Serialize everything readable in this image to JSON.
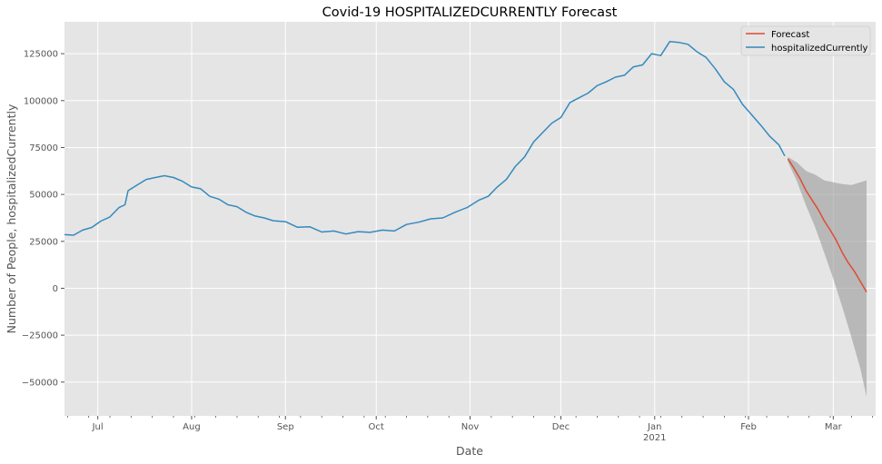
{
  "chart_data": {
    "type": "line",
    "title": "Covid-19 HOSPITALIZEDCURRENTLY Forecast",
    "xlabel": "Date",
    "ylabel": "Number of People, hospitalizedCurrently",
    "grid": true,
    "legend_position": "top-right",
    "xlim": [
      "2020-06-20",
      "2021-03-15"
    ],
    "ylim": [
      -68000,
      142000
    ],
    "x_ticks": [
      {
        "date": "2020-07-01",
        "label": "Jul"
      },
      {
        "date": "2020-08-01",
        "label": "Aug"
      },
      {
        "date": "2020-09-01",
        "label": "Sep"
      },
      {
        "date": "2020-10-01",
        "label": "Oct"
      },
      {
        "date": "2020-11-01",
        "label": "Nov"
      },
      {
        "date": "2020-12-01",
        "label": "Dec"
      },
      {
        "date": "2021-01-01",
        "label": "Jan",
        "sublabel": "2021"
      },
      {
        "date": "2021-02-01",
        "label": "Feb"
      },
      {
        "date": "2021-03-01",
        "label": "Mar"
      }
    ],
    "y_ticks": [
      -50000,
      -25000,
      0,
      25000,
      50000,
      75000,
      100000,
      125000
    ],
    "y_tick_labels": [
      "−50000",
      "−25000",
      "0",
      "25000",
      "50000",
      "75000",
      "100000",
      "125000"
    ],
    "series": [
      {
        "name": "hospitalizedCurrently",
        "color": "#348ABD",
        "points": [
          [
            "2020-06-20",
            28600
          ],
          [
            "2020-06-23",
            28300
          ],
          [
            "2020-06-26",
            31000
          ],
          [
            "2020-06-29",
            32400
          ],
          [
            "2020-07-02",
            35800
          ],
          [
            "2020-07-05",
            38000
          ],
          [
            "2020-07-08",
            43000
          ],
          [
            "2020-07-10",
            44500
          ],
          [
            "2020-07-11",
            52000
          ],
          [
            "2020-07-14",
            55000
          ],
          [
            "2020-07-17",
            58000
          ],
          [
            "2020-07-20",
            59000
          ],
          [
            "2020-07-23",
            60000
          ],
          [
            "2020-07-26",
            59000
          ],
          [
            "2020-07-29",
            57000
          ],
          [
            "2020-08-01",
            54000
          ],
          [
            "2020-08-04",
            53000
          ],
          [
            "2020-08-07",
            49000
          ],
          [
            "2020-08-10",
            47500
          ],
          [
            "2020-08-13",
            44500
          ],
          [
            "2020-08-16",
            43500
          ],
          [
            "2020-08-19",
            40500
          ],
          [
            "2020-08-22",
            38500
          ],
          [
            "2020-08-25",
            37500
          ],
          [
            "2020-08-28",
            36000
          ],
          [
            "2020-09-01",
            35500
          ],
          [
            "2020-09-05",
            32500
          ],
          [
            "2020-09-09",
            32800
          ],
          [
            "2020-09-13",
            30000
          ],
          [
            "2020-09-17",
            30500
          ],
          [
            "2020-09-21",
            28900
          ],
          [
            "2020-09-25",
            30200
          ],
          [
            "2020-09-29",
            29800
          ],
          [
            "2020-10-03",
            31000
          ],
          [
            "2020-10-07",
            30500
          ],
          [
            "2020-10-11",
            34000
          ],
          [
            "2020-10-15",
            35200
          ],
          [
            "2020-10-19",
            37000
          ],
          [
            "2020-10-23",
            37500
          ],
          [
            "2020-10-27",
            40500
          ],
          [
            "2020-10-31",
            43000
          ],
          [
            "2020-11-04",
            47000
          ],
          [
            "2020-11-07",
            49000
          ],
          [
            "2020-11-10",
            54000
          ],
          [
            "2020-11-13",
            58000
          ],
          [
            "2020-11-16",
            65000
          ],
          [
            "2020-11-19",
            70000
          ],
          [
            "2020-11-22",
            78000
          ],
          [
            "2020-11-25",
            83000
          ],
          [
            "2020-11-28",
            88000
          ],
          [
            "2020-12-01",
            91000
          ],
          [
            "2020-12-04",
            99000
          ],
          [
            "2020-12-07",
            101500
          ],
          [
            "2020-12-10",
            104000
          ],
          [
            "2020-12-13",
            108000
          ],
          [
            "2020-12-16",
            110000
          ],
          [
            "2020-12-19",
            112500
          ],
          [
            "2020-12-22",
            113500
          ],
          [
            "2020-12-25",
            118000
          ],
          [
            "2020-12-28",
            119000
          ],
          [
            "2020-12-31",
            125000
          ],
          [
            "2021-01-03",
            124000
          ],
          [
            "2021-01-06",
            131500
          ],
          [
            "2021-01-09",
            131000
          ],
          [
            "2021-01-12",
            130000
          ],
          [
            "2021-01-15",
            126000
          ],
          [
            "2021-01-18",
            123000
          ],
          [
            "2021-01-21",
            117000
          ],
          [
            "2021-01-24",
            110000
          ],
          [
            "2021-01-27",
            106000
          ],
          [
            "2021-01-30",
            98000
          ],
          [
            "2021-02-02",
            92500
          ],
          [
            "2021-02-05",
            87000
          ],
          [
            "2021-02-08",
            81000
          ],
          [
            "2021-02-11",
            76500
          ],
          [
            "2021-02-13",
            70500
          ]
        ]
      },
      {
        "name": "Forecast",
        "color": "#E24A33",
        "points": [
          [
            "2021-02-14",
            69000
          ],
          [
            "2021-02-16",
            64000
          ],
          [
            "2021-02-18",
            58500
          ],
          [
            "2021-02-20",
            52000
          ],
          [
            "2021-02-22",
            47000
          ],
          [
            "2021-02-24",
            42000
          ],
          [
            "2021-02-26",
            36000
          ],
          [
            "2021-02-28",
            31000
          ],
          [
            "2021-03-02",
            25500
          ],
          [
            "2021-03-04",
            19000
          ],
          [
            "2021-03-06",
            13500
          ],
          [
            "2021-03-08",
            9000
          ],
          [
            "2021-03-10",
            3500
          ],
          [
            "2021-03-12",
            -2000
          ]
        ]
      }
    ],
    "confidence_band": {
      "color": "#9a9a9a",
      "upper": [
        [
          "2021-02-14",
          70000
        ],
        [
          "2021-02-17",
          67000
        ],
        [
          "2021-02-20",
          62500
        ],
        [
          "2021-02-23",
          60500
        ],
        [
          "2021-02-26",
          57500
        ],
        [
          "2021-03-01",
          56500
        ],
        [
          "2021-03-04",
          55500
        ],
        [
          "2021-03-07",
          55000
        ],
        [
          "2021-03-10",
          56500
        ],
        [
          "2021-03-12",
          57500
        ]
      ],
      "lower": [
        [
          "2021-02-14",
          67500
        ],
        [
          "2021-02-17",
          57000
        ],
        [
          "2021-02-20",
          44000
        ],
        [
          "2021-02-23",
          32500
        ],
        [
          "2021-02-26",
          19000
        ],
        [
          "2021-03-01",
          5000
        ],
        [
          "2021-03-04",
          -10000
        ],
        [
          "2021-03-07",
          -26000
        ],
        [
          "2021-03-10",
          -43000
        ],
        [
          "2021-03-12",
          -58000
        ]
      ]
    }
  }
}
